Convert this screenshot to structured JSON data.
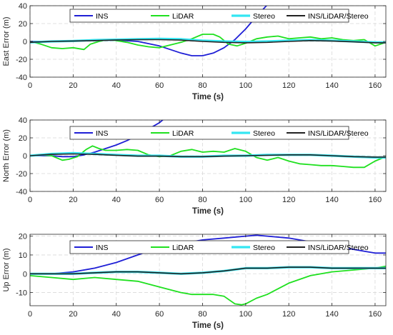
{
  "chart_data": [
    {
      "type": "line",
      "xlabel": "Time (s)",
      "ylabel": "East Error (m)",
      "xlim": [
        0,
        165
      ],
      "ylim": [
        -40,
        40
      ],
      "xticks": [
        0,
        20,
        40,
        60,
        80,
        100,
        120,
        140,
        160
      ],
      "yticks": [
        -40,
        -20,
        0,
        20,
        40
      ],
      "grid": true,
      "legend": {
        "placement": "top",
        "orientation": "horizontal"
      },
      "series": [
        {
          "name": "INS",
          "color": "#1f1fd6",
          "x": [
            0,
            10,
            20,
            30,
            40,
            50,
            60,
            65,
            70,
            75,
            80,
            85,
            90,
            95,
            100,
            105,
            110
          ],
          "y": [
            0,
            0,
            0.5,
            1,
            1.5,
            0,
            -5,
            -9,
            -13,
            -16,
            -16,
            -13,
            -7,
            2,
            14,
            28,
            41
          ]
        },
        {
          "name": "LiDAR",
          "color": "#1fe01f",
          "x": [
            0,
            5,
            10,
            15,
            20,
            25,
            28,
            32,
            36,
            40,
            45,
            50,
            55,
            60,
            65,
            70,
            75,
            80,
            85,
            88,
            92,
            96,
            100,
            105,
            110,
            115,
            120,
            125,
            130,
            135,
            140,
            145,
            150,
            155,
            160,
            165
          ],
          "y": [
            0,
            -3,
            -7,
            -8,
            -7,
            -9,
            -3,
            0,
            2,
            1,
            -1,
            -4,
            -6,
            -7,
            -4,
            -1,
            3,
            8,
            8,
            5,
            -3,
            -5,
            -2,
            3,
            5,
            6,
            3,
            4,
            5,
            3,
            4,
            2,
            1,
            2,
            -5,
            -1
          ]
        },
        {
          "name": "Stereo",
          "color": "#33e6f2",
          "x": [
            0,
            10,
            20,
            30,
            40,
            50,
            60,
            70,
            80,
            90,
            100,
            110,
            120,
            130,
            140,
            150,
            160,
            165
          ],
          "y": [
            -1,
            0,
            0.5,
            1.5,
            2,
            2.5,
            3,
            2.5,
            1,
            0,
            -0.5,
            0,
            1,
            1.5,
            1,
            0,
            -1,
            -1
          ]
        },
        {
          "name": "INS/LiDAR/Stereo",
          "color": "#222222",
          "x": [
            0,
            10,
            20,
            30,
            40,
            50,
            60,
            70,
            80,
            90,
            100,
            110,
            120,
            130,
            140,
            150,
            160,
            165
          ],
          "y": [
            -1,
            0,
            0.5,
            1,
            1.5,
            2,
            2,
            1.5,
            0,
            -1,
            -1.5,
            -1,
            0,
            1,
            0.5,
            -0.5,
            -1.5,
            -1.5
          ]
        }
      ]
    },
    {
      "type": "line",
      "xlabel": "Time (s)",
      "ylabel": "North Error (m)",
      "xlim": [
        0,
        165
      ],
      "ylim": [
        -40,
        40
      ],
      "xticks": [
        0,
        20,
        40,
        60,
        80,
        100,
        120,
        140,
        160
      ],
      "yticks": [
        -40,
        -20,
        0,
        20,
        40
      ],
      "grid": true,
      "legend": {
        "placement": "top",
        "orientation": "horizontal"
      },
      "series": [
        {
          "name": "INS",
          "color": "#1f1fd6",
          "x": [
            0,
            10,
            15,
            20,
            25,
            30,
            35,
            40,
            45,
            50,
            55,
            60,
            62
          ],
          "y": [
            0,
            0,
            -1,
            -1,
            1,
            4,
            8,
            12,
            17,
            23,
            30,
            37,
            41
          ]
        },
        {
          "name": "LiDAR",
          "color": "#1fe01f",
          "x": [
            0,
            5,
            10,
            15,
            18,
            22,
            26,
            29,
            32,
            35,
            40,
            45,
            50,
            55,
            60,
            65,
            70,
            75,
            80,
            85,
            90,
            95,
            100,
            105,
            110,
            115,
            120,
            125,
            130,
            135,
            140,
            145,
            150,
            155,
            160,
            165
          ],
          "y": [
            0,
            1,
            0,
            -5,
            -4,
            -1,
            7,
            11,
            8,
            6,
            6,
            7,
            6,
            1,
            -1,
            0,
            5,
            7,
            4,
            5,
            4,
            8,
            5,
            -2,
            -5,
            -2,
            -6,
            -9,
            -10,
            -11,
            -11,
            -12,
            -13,
            -13,
            -6,
            -1
          ]
        },
        {
          "name": "Stereo",
          "color": "#33e6f2",
          "x": [
            0,
            10,
            20,
            30,
            40,
            50,
            60,
            70,
            80,
            90,
            100,
            110,
            120,
            130,
            140,
            150,
            160,
            165
          ],
          "y": [
            0,
            2,
            3,
            2,
            1,
            0,
            0,
            -1,
            -1,
            0,
            0,
            1,
            1,
            1,
            0,
            -1,
            -2,
            -2
          ]
        },
        {
          "name": "INS/LiDAR/Stereo",
          "color": "#222222",
          "x": [
            0,
            10,
            20,
            30,
            40,
            50,
            60,
            70,
            80,
            90,
            100,
            110,
            120,
            130,
            140,
            150,
            160,
            165
          ],
          "y": [
            0,
            1.5,
            2,
            1.5,
            0.5,
            -0.5,
            -0.5,
            -1,
            -1,
            -0.5,
            0,
            0.5,
            1,
            1,
            0,
            -1,
            -1.5,
            -1.5
          ]
        }
      ]
    },
    {
      "type": "line",
      "xlabel": "Time (s)",
      "ylabel": "Up Error (m)",
      "xlim": [
        0,
        165
      ],
      "ylim": [
        -17,
        21
      ],
      "xticks": [
        0,
        20,
        40,
        60,
        80,
        100,
        120,
        140,
        160
      ],
      "yticks": [
        -10,
        0,
        10,
        20
      ],
      "grid": true,
      "legend": {
        "placement": "top",
        "orientation": "horizontal"
      },
      "series": [
        {
          "name": "INS",
          "color": "#1f1fd6",
          "x": [
            0,
            10,
            20,
            30,
            40,
            50,
            60,
            70,
            80,
            90,
            100,
            105,
            110,
            120,
            130,
            140,
            150,
            155,
            160,
            165
          ],
          "y": [
            0,
            0,
            1,
            3,
            6,
            10,
            14,
            16,
            18,
            19,
            20,
            20.5,
            20,
            19,
            17,
            15,
            13,
            12,
            11,
            11
          ]
        },
        {
          "name": "LiDAR",
          "color": "#1fe01f",
          "x": [
            0,
            10,
            20,
            30,
            40,
            50,
            60,
            70,
            75,
            80,
            85,
            90,
            95,
            98,
            100,
            105,
            110,
            115,
            120,
            130,
            140,
            150,
            160,
            165
          ],
          "y": [
            -1,
            -2,
            -3,
            -2,
            -3,
            -4,
            -7,
            -10,
            -11,
            -11,
            -11,
            -12,
            -16,
            -16.5,
            -16,
            -13,
            -11,
            -8,
            -5,
            -1,
            1,
            2,
            3,
            4
          ]
        },
        {
          "name": "Stereo",
          "color": "#33e6f2",
          "x": [
            0,
            10,
            20,
            30,
            40,
            50,
            60,
            70,
            80,
            90,
            100,
            110,
            120,
            130,
            140,
            150,
            160,
            165
          ],
          "y": [
            0,
            0,
            0,
            0.5,
            1,
            1,
            0.5,
            0,
            0.5,
            1.5,
            3,
            3,
            3.5,
            3.5,
            3,
            3,
            3,
            3
          ]
        },
        {
          "name": "INS/LiDAR/Stereo",
          "color": "#222222",
          "x": [
            0,
            10,
            20,
            30,
            40,
            50,
            60,
            70,
            80,
            90,
            100,
            110,
            120,
            130,
            140,
            150,
            160,
            165
          ],
          "y": [
            0,
            0,
            0,
            0.5,
            1,
            1,
            0.5,
            0,
            0.5,
            1.5,
            3,
            3,
            3.5,
            3.5,
            3,
            3,
            3,
            3
          ]
        }
      ]
    }
  ]
}
